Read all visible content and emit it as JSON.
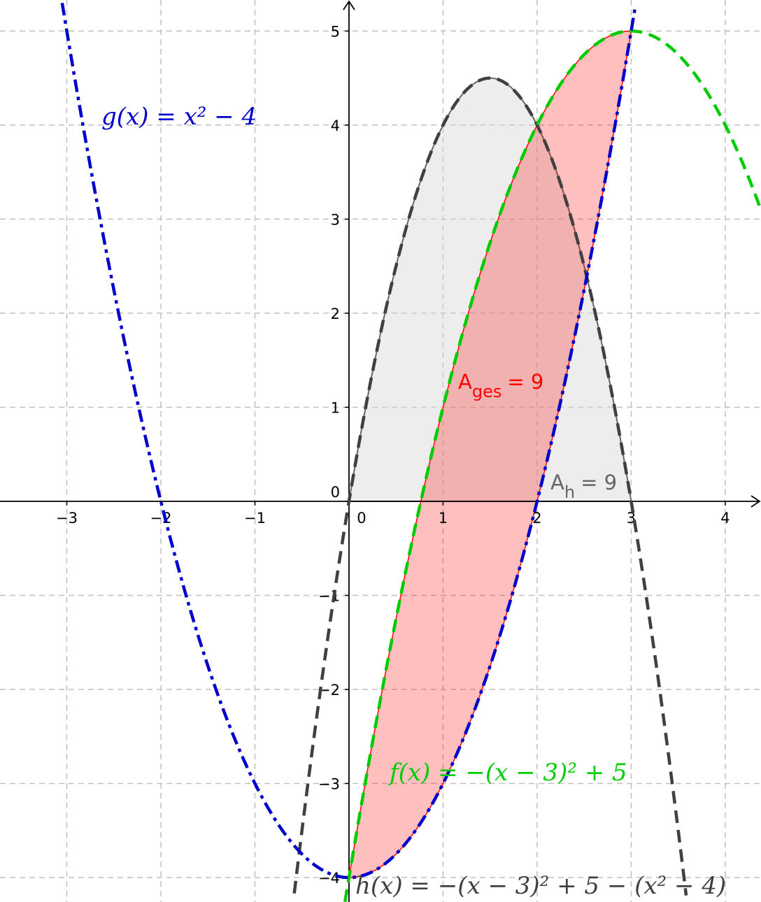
{
  "chart_data": {
    "type": "line",
    "title": "",
    "xlabel": "",
    "ylabel": "",
    "xlim": [
      -3.71,
      4.38
    ],
    "ylim": [
      -4.26,
      5.33
    ],
    "grid": true,
    "x_ticks": [
      "-3",
      "-2",
      "-1",
      "0",
      "1",
      "2",
      "3",
      "4"
    ],
    "y_ticks": [
      "-4",
      "-3",
      "-2",
      "-1",
      "0",
      "1",
      "2",
      "3",
      "4",
      "5"
    ],
    "series": [
      {
        "id": "g",
        "label": "g(x) = x² − 4",
        "coeffs": [
          1,
          0,
          -4
        ],
        "color": "#0000cc",
        "style": "dash-dot"
      },
      {
        "id": "f",
        "label": "f(x) = −(x − 3)² + 5",
        "coeffs": [
          -1,
          6,
          -4
        ],
        "color": "#00cc00",
        "style": "dashed"
      },
      {
        "id": "h",
        "label": "h(x) = −(x − 3)² + 5 − (x² − 4)",
        "coeffs": [
          -2,
          6,
          0
        ],
        "color": "#404040",
        "style": "dashed"
      }
    ],
    "areas": [
      {
        "id": "A_h",
        "between": [
          "h",
          "x-axis"
        ],
        "x_range": [
          0,
          3
        ],
        "label_main": "A",
        "label_sub": "h",
        "label_value": "= 9",
        "value": 9,
        "color": "#666666"
      },
      {
        "id": "A_ges",
        "between": [
          "f",
          "g"
        ],
        "x_range": [
          0,
          3
        ],
        "label_main": "A",
        "label_sub": "ges",
        "label_value": "= 9",
        "value": 9,
        "color": "#ff0000"
      }
    ]
  }
}
